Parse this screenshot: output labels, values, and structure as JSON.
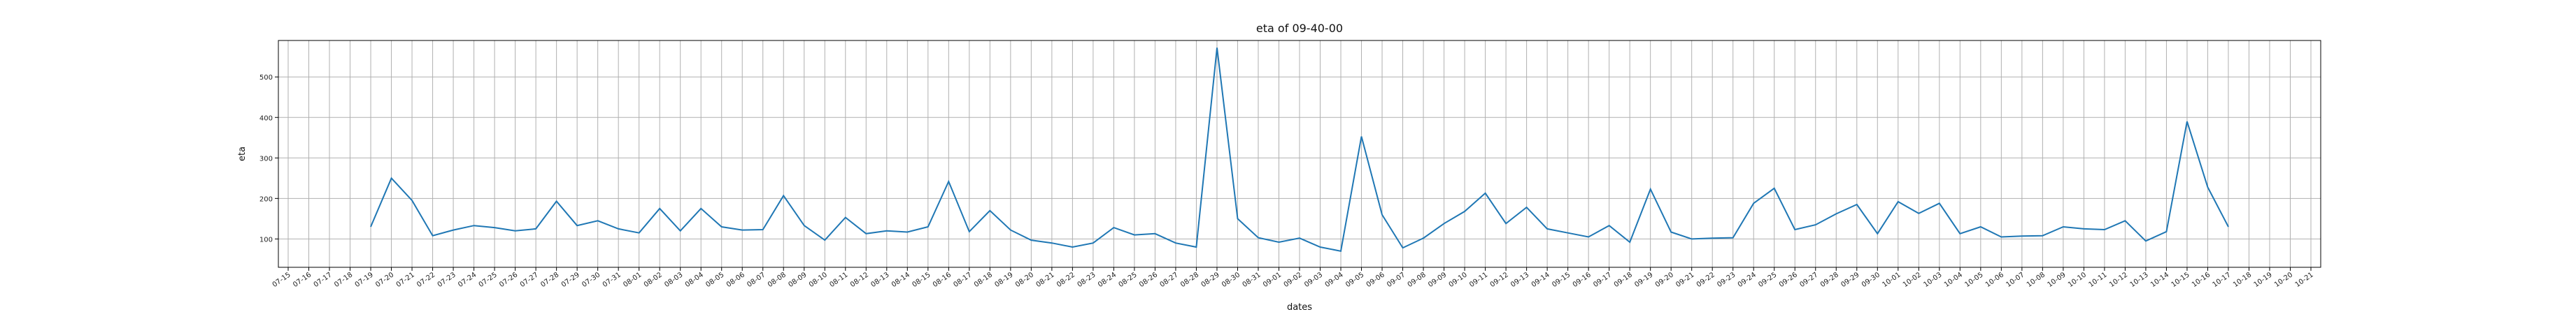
{
  "chart_data": {
    "type": "line",
    "title": "eta of 09-40-00",
    "xlabel": "dates",
    "ylabel": "eta",
    "grid": true,
    "ylim": [
      30,
      590
    ],
    "yticks": [
      100,
      200,
      300,
      400,
      500
    ],
    "line_color": "#1f77b4",
    "x_categories": [
      "07-15",
      "07-16",
      "07-17",
      "07-18",
      "07-19",
      "07-20",
      "07-21",
      "07-22",
      "07-23",
      "07-24",
      "07-25",
      "07-26",
      "07-27",
      "07-28",
      "07-29",
      "07-30",
      "07-31",
      "08-01",
      "08-02",
      "08-03",
      "08-04",
      "08-05",
      "08-06",
      "08-07",
      "08-08",
      "08-09",
      "08-10",
      "08-11",
      "08-12",
      "08-13",
      "08-14",
      "08-15",
      "08-16",
      "08-17",
      "08-18",
      "08-19",
      "08-20",
      "08-21",
      "08-22",
      "08-23",
      "08-24",
      "08-25",
      "08-26",
      "08-27",
      "08-28",
      "08-29",
      "08-30",
      "08-31",
      "09-01",
      "09-02",
      "09-03",
      "09-04",
      "09-05",
      "09-06",
      "09-07",
      "09-08",
      "09-09",
      "09-10",
      "09-11",
      "09-12",
      "09-13",
      "09-14",
      "09-15",
      "09-16",
      "09-17",
      "09-18",
      "09-19",
      "09-20",
      "09-21",
      "09-22",
      "09-23",
      "09-24",
      "09-25",
      "09-26",
      "09-27",
      "09-28",
      "09-29",
      "09-30",
      "10-01",
      "10-02",
      "10-03",
      "10-04",
      "10-05",
      "10-06",
      "10-07",
      "10-08",
      "10-09",
      "10-10",
      "10-11",
      "10-12",
      "10-13",
      "10-14",
      "10-15",
      "10-16",
      "10-17",
      "10-18",
      "10-19",
      "10-20",
      "10-21"
    ],
    "series": [
      {
        "x": [
          "07-19",
          "07-20",
          "07-21",
          "07-22",
          "07-23",
          "07-24",
          "07-25",
          "07-26",
          "07-27",
          "07-28",
          "07-29",
          "07-30",
          "07-31",
          "08-01",
          "08-02",
          "08-03",
          "08-04",
          "08-05",
          "08-06",
          "08-07",
          "08-08",
          "08-09",
          "08-10",
          "08-11",
          "08-12",
          "08-13",
          "08-14",
          "08-15",
          "08-16",
          "08-17",
          "08-18",
          "08-19",
          "08-20",
          "08-21",
          "08-22",
          "08-23",
          "08-24",
          "08-25",
          "08-26",
          "08-27",
          "08-28",
          "08-29",
          "08-30",
          "08-31",
          "09-01",
          "09-02",
          "09-03",
          "09-04",
          "09-05",
          "09-06",
          "09-07",
          "09-08",
          "09-09",
          "09-10",
          "09-11",
          "09-12",
          "09-13",
          "09-14",
          "09-15",
          "09-16",
          "09-17",
          "09-18",
          "09-19",
          "09-20",
          "09-21",
          "09-22",
          "09-23",
          "09-24",
          "09-25",
          "09-26",
          "09-27",
          "09-28",
          "09-29",
          "09-30",
          "10-01",
          "10-02",
          "10-03",
          "10-04",
          "10-05",
          "10-06",
          "10-07",
          "10-08",
          "10-09",
          "10-10",
          "10-11",
          "10-12",
          "10-13",
          "10-14",
          "10-15",
          "10-16",
          "10-17"
        ],
        "values": [
          130,
          250,
          195,
          108,
          122,
          133,
          128,
          120,
          125,
          193,
          133,
          145,
          125,
          115,
          175,
          120,
          175,
          130,
          122,
          123,
          207,
          133,
          97,
          153,
          113,
          120,
          117,
          130,
          242,
          118,
          170,
          122,
          97,
          90,
          80,
          90,
          128,
          110,
          113,
          90,
          80,
          572,
          150,
          103,
          92,
          102,
          80,
          70,
          353,
          160,
          78,
          102,
          138,
          168,
          213,
          138,
          178,
          125,
          115,
          105,
          133,
          92,
          223,
          117,
          100,
          102,
          103,
          188,
          225,
          123,
          135,
          162,
          185,
          113,
          192,
          163,
          188,
          113,
          130,
          105,
          107,
          108,
          130,
          125,
          123,
          145,
          95,
          118,
          390,
          228,
          130
        ]
      }
    ]
  }
}
